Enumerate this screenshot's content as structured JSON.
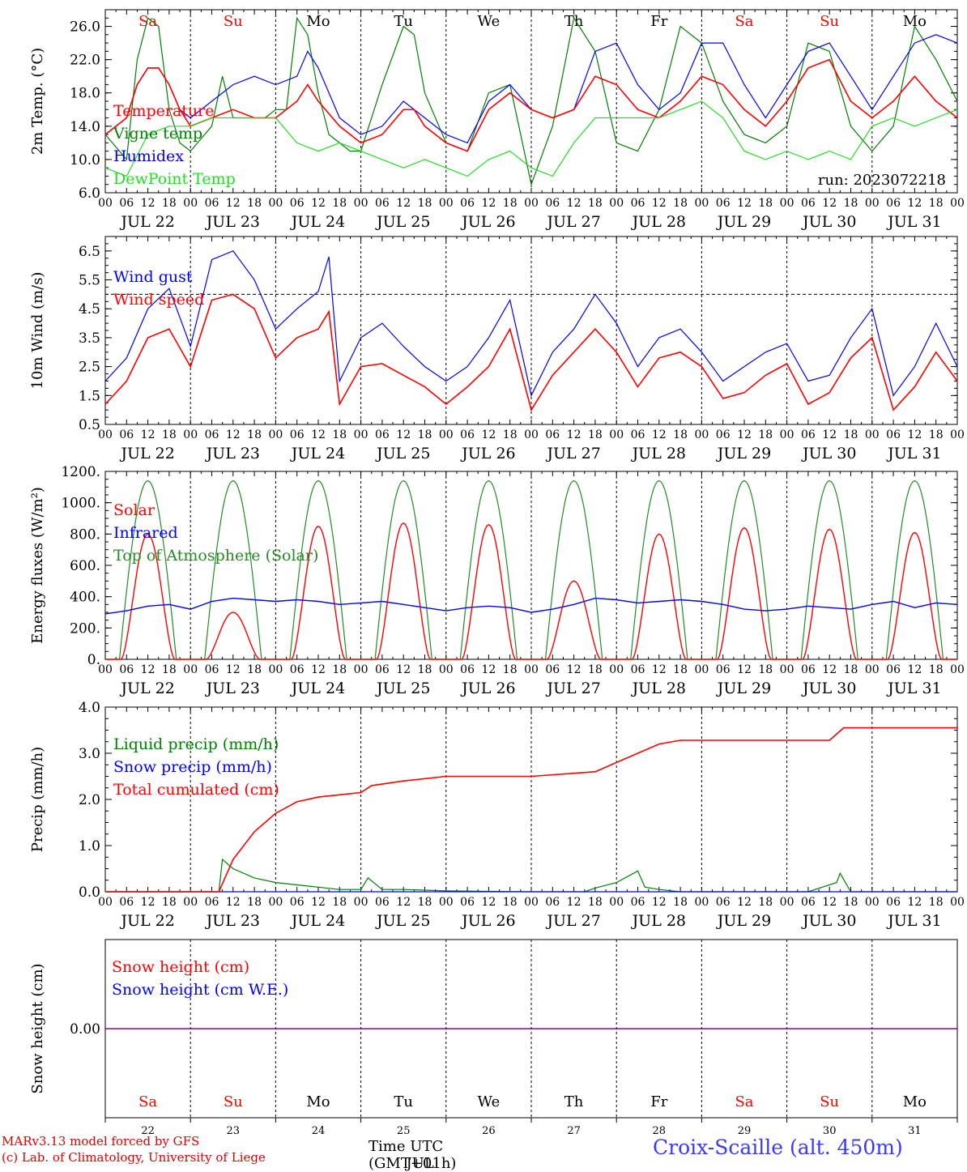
{
  "run_label": "run: 2023072218",
  "footer": {
    "model_line": "MARv3.13 model forced by GFS",
    "copyright_line": "(c) Lab. of Climatology, University of Liege",
    "time_axis_label": "Time UTC (GMT+01h)",
    "time_axis_overlay": "JUL",
    "station_label": "Croix-Scaille (alt. 450m)"
  },
  "colors": {
    "red": "#ff0000",
    "green": "#008000",
    "blue": "#0000ff",
    "lightgreen": "#22dd22",
    "olive": "#228b22",
    "purple": "#800080",
    "weekend": "#ff0000",
    "weekday": "#000000"
  },
  "days": {
    "weekday_labels": [
      "Sa",
      "Su",
      "Mo",
      "Tu",
      "We",
      "Th",
      "Fr",
      "Sa",
      "Su",
      "Mo"
    ],
    "weekend": [
      true,
      true,
      false,
      false,
      false,
      false,
      false,
      true,
      true,
      false
    ],
    "date_labels": [
      "JUL 22",
      "JUL 23",
      "JUL 24",
      "JUL 25",
      "JUL 26",
      "JUL 27",
      "JUL 28",
      "JUL 29",
      "JUL 30",
      "JUL 31"
    ],
    "day_numbers": [
      "22",
      "23",
      "24",
      "25",
      "26",
      "27",
      "28",
      "29",
      "30",
      "31"
    ],
    "hour_labels": [
      "00",
      "06",
      "12",
      "18"
    ],
    "final_hour_label": "00"
  },
  "chart_data": [
    {
      "type": "line",
      "ylabel": "2m Temp. (°C)",
      "ylim": [
        6,
        28
      ],
      "yticks": [
        "6.0",
        "10.0",
        "14.0",
        "18.0",
        "22.0",
        "26.0"
      ],
      "ytick_values": [
        6,
        10,
        14,
        18,
        22,
        26
      ],
      "x_unit": "hours since 2023-07-22 00 UTC",
      "series": [
        {
          "name": "Vigne temp",
          "color": "#008000",
          "x": [
            0,
            6,
            9,
            12,
            15,
            18,
            21,
            24,
            30,
            33,
            36,
            42,
            45,
            48,
            51,
            54,
            57,
            60,
            63,
            66,
            69,
            72,
            78,
            84,
            87,
            90,
            96,
            102,
            108,
            114,
            117,
            120,
            126,
            132,
            138,
            144,
            150,
            156,
            162,
            168,
            174,
            180,
            186,
            192,
            198,
            204,
            210,
            216,
            222,
            228,
            234,
            240
          ],
          "y": [
            13,
            10,
            22,
            27,
            26,
            16,
            12,
            11,
            14,
            20,
            15,
            15,
            15,
            16,
            16,
            27,
            25,
            18,
            13,
            12,
            11,
            11,
            19,
            26,
            25,
            18,
            12,
            11,
            18,
            19,
            13,
            7,
            14,
            27,
            23,
            12,
            11,
            16,
            26,
            24,
            17,
            13,
            12,
            14,
            24,
            23,
            14,
            11,
            14,
            26,
            22,
            17
          ]
        },
        {
          "name": "Humidex",
          "color": "#0000ff",
          "x": [
            0,
            6,
            9,
            12,
            15,
            18,
            21,
            24,
            30,
            36,
            42,
            48,
            54,
            57,
            60,
            66,
            72,
            78,
            84,
            87,
            90,
            96,
            102,
            108,
            114,
            120,
            126,
            132,
            138,
            144,
            150,
            156,
            162,
            168,
            174,
            180,
            186,
            192,
            198,
            204,
            210,
            216,
            222,
            228,
            234,
            240
          ],
          "y": [
            13,
            15,
            19,
            21,
            21,
            19,
            16,
            15,
            17,
            19,
            20,
            19,
            20,
            23,
            21,
            15,
            13,
            14,
            17,
            16,
            15,
            13,
            12,
            17,
            19,
            16,
            15,
            16,
            23,
            24,
            19,
            16,
            18,
            24,
            24,
            19,
            15,
            19,
            23,
            24,
            20,
            16,
            20,
            24,
            25,
            24
          ]
        },
        {
          "name": "Temperature",
          "color": "#ff0000",
          "x": [
            0,
            6,
            9,
            12,
            15,
            18,
            21,
            24,
            30,
            36,
            42,
            48,
            54,
            57,
            60,
            66,
            72,
            78,
            84,
            87,
            90,
            96,
            102,
            108,
            114,
            120,
            126,
            132,
            138,
            144,
            150,
            156,
            162,
            168,
            174,
            180,
            186,
            192,
            198,
            204,
            210,
            216,
            222,
            228,
            234,
            240
          ],
          "y": [
            13,
            15,
            19,
            21,
            21,
            19,
            16,
            14,
            15,
            16,
            15,
            15,
            17,
            19,
            17,
            14,
            12,
            13,
            16,
            16,
            14,
            12,
            11,
            16,
            18,
            16,
            15,
            16,
            20,
            19,
            16,
            15,
            17,
            20,
            19,
            16,
            14,
            17,
            21,
            22,
            17,
            15,
            17,
            20,
            17,
            15
          ]
        },
        {
          "name": "DewPoint Temp",
          "color": "#22dd22",
          "x": [
            0,
            6,
            12,
            18,
            24,
            30,
            36,
            42,
            48,
            54,
            60,
            66,
            72,
            78,
            84,
            90,
            96,
            102,
            108,
            114,
            120,
            126,
            132,
            138,
            144,
            150,
            156,
            162,
            168,
            174,
            180,
            186,
            192,
            198,
            204,
            210,
            216,
            222,
            228,
            234,
            240
          ],
          "y": [
            9,
            8,
            13,
            14,
            14,
            15,
            15,
            15,
            15,
            12,
            11,
            12,
            11,
            10,
            9,
            10,
            9,
            8,
            10,
            11,
            9,
            8,
            12,
            15,
            15,
            15,
            15,
            16,
            17,
            15,
            11,
            10,
            11,
            10,
            11,
            10,
            14,
            15,
            14,
            15,
            16
          ]
        }
      ]
    },
    {
      "type": "line",
      "ylabel": "10m Wind (m/s)",
      "ylim": [
        0.5,
        7
      ],
      "yticks": [
        "0.5",
        "1.5",
        "2.5",
        "3.5",
        "4.5",
        "5.5",
        "6.5"
      ],
      "ytick_values": [
        0.5,
        1.5,
        2.5,
        3.5,
        4.5,
        5.5,
        6.5
      ],
      "reference_line": 5,
      "x_unit": "hours since 2023-07-22 00 UTC",
      "series": [
        {
          "name": "Wind gust",
          "color": "#0000ff",
          "x": [
            0,
            6,
            12,
            18,
            24,
            30,
            36,
            42,
            48,
            54,
            60,
            63,
            66,
            72,
            78,
            84,
            90,
            96,
            102,
            108,
            114,
            120,
            126,
            132,
            138,
            144,
            150,
            156,
            162,
            168,
            174,
            180,
            186,
            192,
            198,
            204,
            210,
            216,
            222,
            228,
            234,
            240
          ],
          "y": [
            2,
            2.8,
            4.5,
            5.2,
            3.2,
            6.2,
            6.5,
            5.5,
            3.8,
            4.5,
            5.1,
            6.3,
            2,
            3.5,
            4,
            3.2,
            2.5,
            2,
            2.5,
            3.5,
            4.8,
            1.5,
            3,
            3.8,
            5,
            4,
            2.5,
            3.5,
            3.8,
            3,
            2,
            2.5,
            3,
            3.3,
            2,
            2.2,
            3.5,
            4.5,
            1.5,
            2.5,
            4,
            2.5
          ]
        },
        {
          "name": "Wind speed",
          "color": "#ff0000",
          "x": [
            0,
            6,
            12,
            18,
            24,
            30,
            36,
            42,
            48,
            54,
            60,
            63,
            66,
            72,
            78,
            84,
            90,
            96,
            102,
            108,
            114,
            120,
            126,
            132,
            138,
            144,
            150,
            156,
            162,
            168,
            174,
            180,
            186,
            192,
            198,
            204,
            210,
            216,
            222,
            228,
            234,
            240
          ],
          "y": [
            1.2,
            2,
            3.5,
            3.8,
            2.5,
            4.8,
            5,
            4.5,
            2.8,
            3.5,
            3.8,
            4.4,
            1.2,
            2.5,
            2.6,
            2.2,
            1.8,
            1.2,
            1.8,
            2.5,
            3.8,
            1,
            2.2,
            3,
            3.8,
            3,
            1.8,
            2.8,
            3,
            2.5,
            1.4,
            1.6,
            2.2,
            2.6,
            1.2,
            1.6,
            2.8,
            3.5,
            1,
            1.8,
            3,
            2
          ]
        }
      ]
    },
    {
      "type": "line",
      "ylabel": "Energy fluxes (W/m²)",
      "ylim": [
        0,
        1200
      ],
      "yticks": [
        "0.",
        "200.",
        "400.",
        "600.",
        "800.",
        "1000.",
        "1200."
      ],
      "ytick_values": [
        0,
        200,
        400,
        600,
        800,
        1000,
        1200
      ],
      "x_unit": "hours since 2023-07-22 00 UTC",
      "toa_peak": 1140,
      "solar_peaks": [
        800,
        300,
        850,
        870,
        860,
        500,
        800,
        840,
        830,
        810
      ],
      "series": [
        {
          "name": "Solar",
          "color": "#ff0000"
        },
        {
          "name": "Infrared",
          "color": "#0000ff",
          "x": [
            0,
            6,
            12,
            18,
            24,
            30,
            36,
            42,
            48,
            54,
            60,
            66,
            72,
            78,
            84,
            90,
            96,
            102,
            108,
            114,
            120,
            126,
            132,
            138,
            144,
            150,
            156,
            162,
            168,
            174,
            180,
            186,
            192,
            198,
            204,
            210,
            216,
            222,
            228,
            234,
            240
          ],
          "y": [
            290,
            310,
            340,
            350,
            320,
            370,
            390,
            380,
            370,
            380,
            370,
            350,
            360,
            370,
            350,
            330,
            310,
            330,
            340,
            330,
            300,
            320,
            350,
            390,
            380,
            360,
            370,
            380,
            370,
            350,
            320,
            310,
            320,
            340,
            330,
            320,
            350,
            370,
            330,
            360,
            350
          ]
        },
        {
          "name": "Top of Atmosphere (Solar)",
          "color": "#228b22"
        }
      ]
    },
    {
      "type": "line",
      "ylabel": "Precip (mm/h)",
      "ylim": [
        0,
        4
      ],
      "yticks": [
        "0.0",
        "1.0",
        "2.0",
        "3.0",
        "4.0"
      ],
      "ytick_values": [
        0,
        1,
        2,
        3,
        4
      ],
      "x_unit": "hours since 2023-07-22 00 UTC",
      "series": [
        {
          "name": "Liquid precip (mm/h)",
          "color": "#008000",
          "x": [
            0,
            32,
            33,
            36,
            42,
            48,
            54,
            60,
            66,
            72,
            74,
            78,
            84,
            96,
            120,
            135,
            138,
            144,
            150,
            152,
            156,
            162,
            198,
            206,
            207,
            210,
            240
          ],
          "y": [
            0,
            0,
            0.7,
            0.5,
            0.3,
            0.2,
            0.15,
            0.1,
            0.05,
            0.05,
            0.3,
            0.05,
            0.05,
            0.02,
            0,
            0,
            0.08,
            0.2,
            0.45,
            0.1,
            0.05,
            0,
            0,
            0.2,
            0.4,
            0,
            0
          ]
        },
        {
          "name": "Snow precip (mm/h)",
          "color": "#0000ff",
          "x": [
            0,
            240
          ],
          "y": [
            0,
            0
          ]
        },
        {
          "name": "Total cumulated (cm)",
          "color": "#ff0000",
          "x": [
            0,
            32,
            36,
            42,
            48,
            54,
            60,
            66,
            72,
            75,
            84,
            96,
            108,
            120,
            138,
            144,
            150,
            156,
            162,
            168,
            204,
            208,
            240
          ],
          "y": [
            0,
            0,
            0.7,
            1.3,
            1.7,
            1.95,
            2.05,
            2.1,
            2.15,
            2.3,
            2.4,
            2.5,
            2.5,
            2.5,
            2.6,
            2.8,
            3.0,
            3.2,
            3.28,
            3.28,
            3.28,
            3.55,
            3.55
          ]
        }
      ]
    },
    {
      "type": "line",
      "ylabel": "Snow height (cm)",
      "ylim": [
        -1,
        1
      ],
      "yticks": [
        "0.00"
      ],
      "ytick_values": [
        0
      ],
      "x_unit": "hours since 2023-07-22 00 UTC",
      "series": [
        {
          "name": "Snow height (cm)",
          "color": "#ff0000",
          "x": [
            0,
            240
          ],
          "y": [
            0,
            0
          ]
        },
        {
          "name": "Snow height (cm W.E.)",
          "color": "#0000ff",
          "x": [
            0,
            240
          ],
          "y": [
            0,
            0
          ]
        }
      ]
    }
  ]
}
